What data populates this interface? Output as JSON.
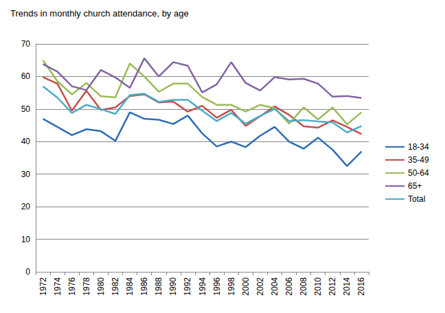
{
  "chart_data": {
    "type": "line",
    "title": "Trends in monthly church attendance, by age",
    "categories": [
      "1972",
      "1974",
      "1976",
      "1978",
      "1980",
      "1982",
      "1984",
      "1986",
      "1988",
      "1990",
      "1992",
      "1994",
      "1996",
      "1998",
      "2000",
      "2002",
      "2004",
      "2006",
      "2008",
      "2010",
      "2012",
      "2014",
      "2016"
    ],
    "series": [
      {
        "name": "18-34",
        "color": "#2f6db5",
        "values": [
          47,
          44.5,
          42,
          43.8,
          43.2,
          40.2,
          49,
          47,
          46.7,
          45.4,
          48,
          42.5,
          38.5,
          40,
          38.3,
          41.8,
          44.5,
          40,
          37.8,
          41.2,
          37.5,
          32.5,
          37
        ]
      },
      {
        "name": "35-49",
        "color": "#c0504d",
        "values": [
          59.8,
          57.8,
          49.5,
          55.6,
          49.7,
          50.5,
          54,
          54.5,
          52,
          52.3,
          49.2,
          51,
          47.3,
          49.8,
          44.8,
          47.8,
          50.8,
          48.2,
          44.7,
          44.3,
          46.5,
          44.5,
          42.3
        ]
      },
      {
        "name": "50-64",
        "color": "#9bbb59",
        "values": [
          65,
          58.5,
          54.5,
          58,
          53.9,
          53.6,
          64,
          60,
          55.3,
          57.8,
          57.8,
          53.7,
          51.3,
          51.3,
          49.2,
          51.3,
          50.3,
          45.5,
          50.5,
          46.8,
          50.5,
          45.3,
          49
        ]
      },
      {
        "name": "65+",
        "color": "#8064a2",
        "values": [
          63.8,
          61.5,
          57,
          55.8,
          62,
          59.7,
          56.5,
          65.6,
          60,
          64.4,
          63.3,
          55.1,
          57.6,
          64.4,
          58,
          55.7,
          59.8,
          59.1,
          59.3,
          57.8,
          53.8,
          54,
          53.4
        ]
      },
      {
        "name": "Total",
        "color": "#4bacc6",
        "values": [
          57,
          53.5,
          48.8,
          51.3,
          50,
          48.5,
          54.3,
          54.7,
          52.2,
          52.8,
          52.8,
          49.5,
          46.3,
          48.8,
          45.5,
          47.9,
          50,
          46.3,
          46.6,
          46.2,
          45.9,
          42.8,
          44.8
        ]
      }
    ],
    "ylim": [
      0,
      70
    ],
    "yticks": [
      0,
      10,
      20,
      30,
      40,
      50,
      60,
      70
    ],
    "grid": true,
    "legend": "right",
    "marker": "none"
  }
}
